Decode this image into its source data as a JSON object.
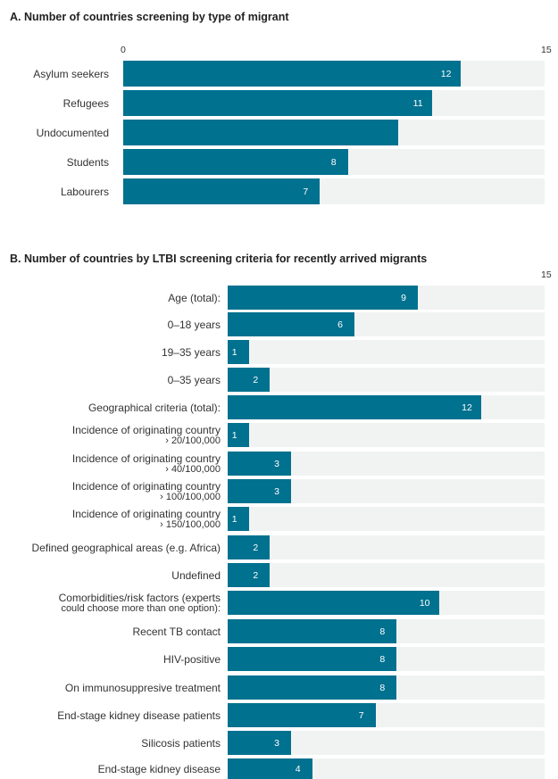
{
  "chart_data": [
    {
      "type": "bar",
      "orientation": "horizontal",
      "title": "A. Number of countries screening by type of migrant",
      "xlim": [
        0,
        15
      ],
      "tick_min_label": "0",
      "tick_max_label": "15",
      "categories": [
        "Asylum seekers",
        "Refugees",
        "Undocumented",
        "Students",
        "Labourers"
      ],
      "values": [
        12,
        11,
        9.8,
        8,
        7
      ],
      "value_labels": [
        "12",
        "11",
        "",
        "8",
        "7"
      ]
    },
    {
      "type": "bar",
      "orientation": "horizontal",
      "title": "B. Number of countries by  LTBI screening criteria for recently arrived migrants",
      "xlim": [
        0,
        15
      ],
      "tick_max_label": "15",
      "categories": [
        "Age (total):",
        "0–18 years",
        "19–35 years",
        "0–35 years",
        "Geographical criteria (total):",
        "Incidence of originating country\n› 20/100,000",
        "Incidence of originating country\n› 40/100,000",
        "Incidence of originating country\n› 100/100,000",
        "Incidence of originating country\n› 150/100,000",
        "Defined geographical areas (e.g. Africa)",
        "Undefined",
        "Comorbidities/risk factors (experts\ncould choose more than one option):",
        "Recent TB contact",
        "HIV-positive",
        "On immunosuppresive treatment",
        "End-stage kidney disease patients",
        "Silicosis patients",
        "End-stage kidney disease"
      ],
      "values": [
        9,
        6,
        1,
        2,
        12,
        1,
        3,
        3,
        1,
        2,
        2,
        10,
        8,
        8,
        8,
        7,
        3,
        4
      ],
      "value_labels": [
        "9",
        "6",
        "1",
        "2",
        "12",
        "1",
        "3",
        "3",
        "1",
        "2",
        "2",
        "10",
        "8",
        "8",
        "8",
        "7",
        "3",
        "4"
      ]
    }
  ]
}
